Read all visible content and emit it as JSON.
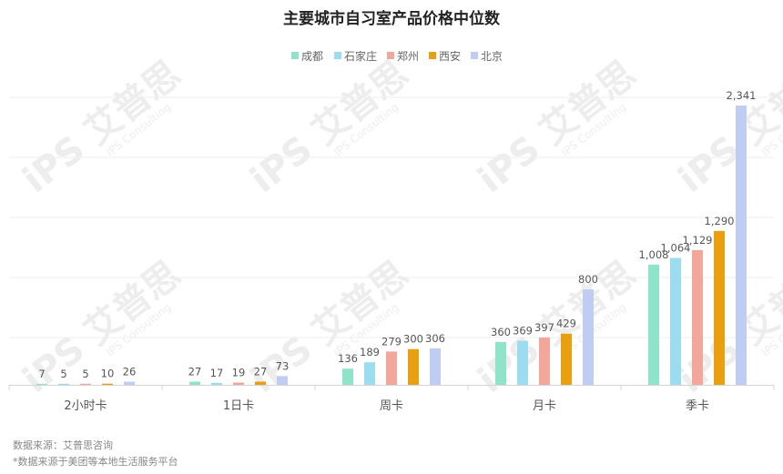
{
  "chart_data": {
    "type": "bar",
    "title": "主要城市自习室产品价格中位数",
    "categories": [
      "2小时卡",
      "1日卡",
      "周卡",
      "月卡",
      "季卡"
    ],
    "series": [
      {
        "name": "成都",
        "color": "#8fe3c8",
        "values": [
          7,
          27,
          136,
          360,
          1008
        ]
      },
      {
        "name": "石家庄",
        "color": "#9bdcf0",
        "values": [
          5,
          17,
          189,
          369,
          1064
        ]
      },
      {
        "name": "郑州",
        "color": "#f2a79a",
        "values": [
          5,
          19,
          279,
          397,
          1129
        ]
      },
      {
        "name": "西安",
        "color": "#e8a010",
        "values": [
          10,
          27,
          300,
          429,
          1290
        ]
      },
      {
        "name": "北京",
        "color": "#bfcdf3",
        "values": [
          26,
          73,
          306,
          800,
          2341
        ]
      }
    ],
    "ylim": [
      0,
      2341
    ],
    "grid": true,
    "legend_position": "top-center",
    "value_labels": [
      [
        "7",
        "5",
        "5",
        "10",
        "26"
      ],
      [
        "27",
        "17",
        "19",
        "27",
        "73"
      ],
      [
        "136",
        "189",
        "279",
        "300",
        "306"
      ],
      [
        "360",
        "369",
        "397",
        "429",
        "800"
      ],
      [
        "1,008",
        "1,064",
        "1,129",
        "1,290",
        "2,341"
      ]
    ]
  },
  "footer": {
    "source": "数据来源：艾普思咨询",
    "note": "*数据来源于美团等本地生活服务平台"
  },
  "watermark": {
    "brand": "艾普思",
    "sub": "IPS Consulting"
  }
}
